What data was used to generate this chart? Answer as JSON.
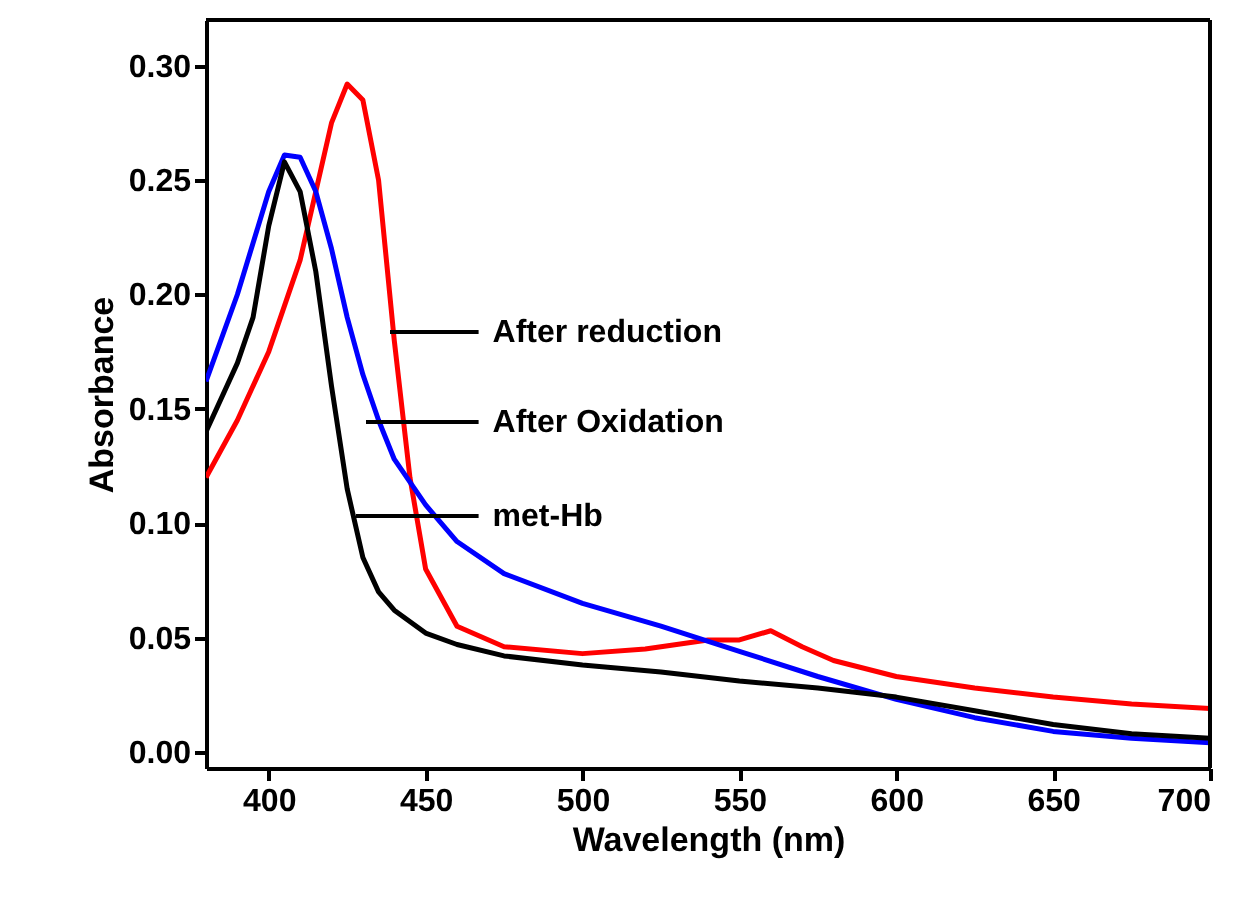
{
  "chart_data": {
    "type": "line",
    "xlabel": "Wavelength (nm)",
    "ylabel": "Absorbance",
    "xlim": [
      380,
      700
    ],
    "ylim": [
      -0.007,
      0.32
    ],
    "xticks": [
      400,
      450,
      500,
      550,
      600,
      650,
      700
    ],
    "yticks": [
      {
        "value": 0,
        "label": "0.00"
      },
      {
        "value": 0.05,
        "label": "0.05"
      },
      {
        "value": 0.1,
        "label": "0.10"
      },
      {
        "value": 0.15,
        "label": "0.15"
      },
      {
        "value": 0.2,
        "label": "0.20"
      },
      {
        "value": 0.25,
        "label": "0.25"
      },
      {
        "value": 0.3,
        "label": "0.30"
      }
    ],
    "grid": false,
    "marker": "none",
    "line_style": "solid",
    "series": [
      {
        "color": "#ff0000",
        "x": [
          380,
          390,
          400,
          410,
          415,
          420,
          425,
          430,
          435,
          440,
          445,
          450,
          460,
          475,
          500,
          520,
          540,
          550,
          560,
          570,
          580,
          600,
          625,
          650,
          675,
          700
        ],
        "values": [
          0.12,
          0.145,
          0.175,
          0.215,
          0.245,
          0.275,
          0.292,
          0.285,
          0.25,
          0.18,
          0.12,
          0.08,
          0.055,
          0.046,
          0.043,
          0.045,
          0.049,
          0.049,
          0.053,
          0.046,
          0.04,
          0.033,
          0.028,
          0.024,
          0.021,
          0.019
        ]
      },
      {
        "color": "#0000ff",
        "x": [
          380,
          390,
          400,
          405,
          410,
          415,
          420,
          425,
          430,
          435,
          440,
          450,
          460,
          475,
          500,
          525,
          550,
          575,
          600,
          625,
          650,
          675,
          700
        ],
        "values": [
          0.162,
          0.2,
          0.245,
          0.261,
          0.26,
          0.245,
          0.22,
          0.19,
          0.165,
          0.145,
          0.128,
          0.108,
          0.092,
          0.078,
          0.065,
          0.055,
          0.044,
          0.033,
          0.023,
          0.015,
          0.009,
          0.006,
          0.004
        ]
      },
      {
        "color": "#000000",
        "x": [
          380,
          390,
          395,
          400,
          405,
          410,
          415,
          420,
          425,
          430,
          435,
          440,
          450,
          460,
          475,
          500,
          525,
          550,
          575,
          600,
          625,
          650,
          675,
          700
        ],
        "values": [
          0.14,
          0.17,
          0.19,
          0.23,
          0.258,
          0.245,
          0.21,
          0.16,
          0.115,
          0.085,
          0.07,
          0.062,
          0.052,
          0.047,
          0.042,
          0.038,
          0.035,
          0.031,
          0.028,
          0.024,
          0.018,
          0.012,
          0.008,
          0.006
        ]
      }
    ],
    "annotations": [
      "After reduction",
      "After Oxidation",
      "met-Hb"
    ]
  }
}
